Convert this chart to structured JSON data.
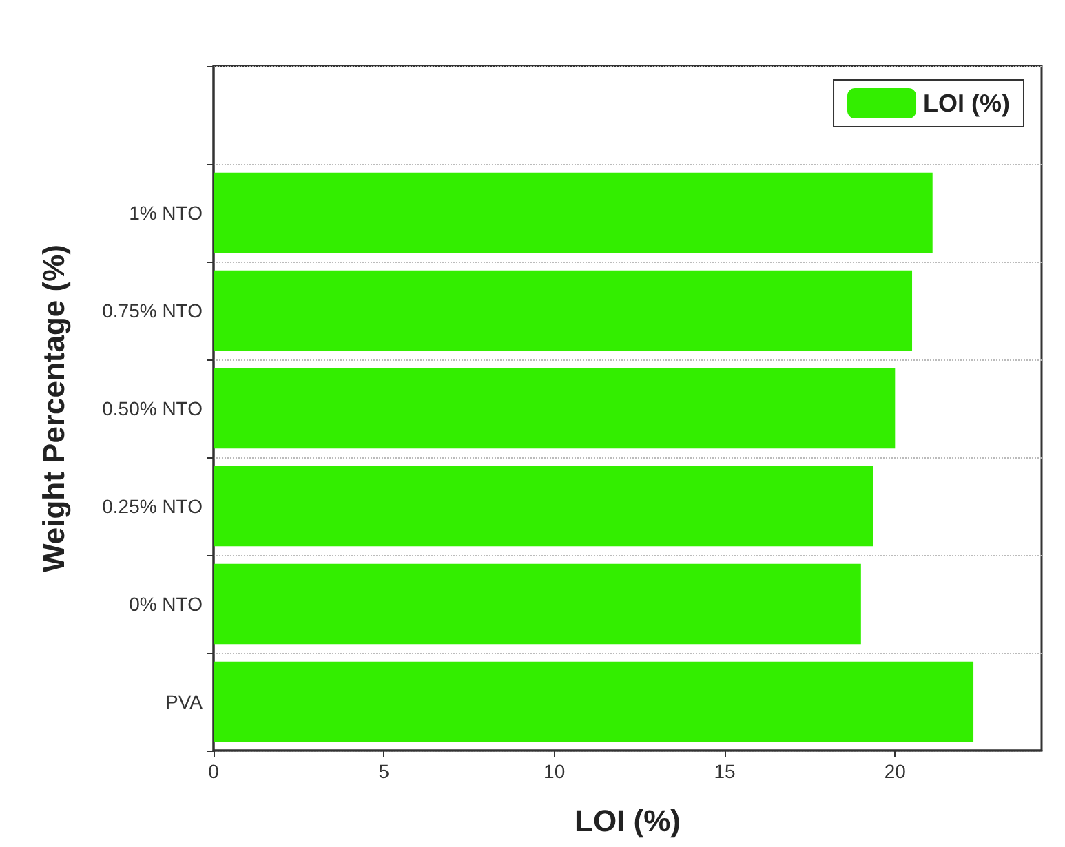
{
  "chart_data": {
    "type": "bar",
    "orientation": "horizontal",
    "xlabel": "LOI (%)",
    "ylabel": "Weight Percentage (%)",
    "categories": [
      null,
      "1% NTO",
      "0.75% NTO",
      "0.50% NTO",
      "0.25% NTO",
      "0% NTO",
      "PVA"
    ],
    "series": [
      {
        "name": "LOI (%)",
        "color": "#33ee00",
        "values": [
          null,
          21.1,
          20.5,
          20.0,
          19.35,
          19.0,
          22.3
        ]
      }
    ],
    "xlim": [
      0,
      24.3
    ],
    "xticks": [
      0,
      5,
      10,
      15,
      20
    ],
    "grid": "y",
    "legend": "top right"
  }
}
